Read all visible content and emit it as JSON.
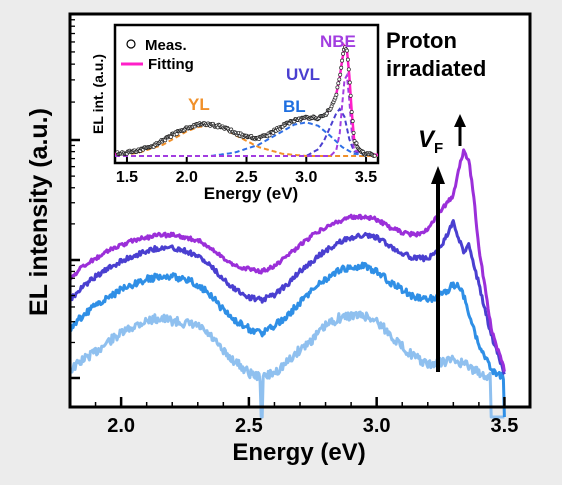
{
  "chart_data": [
    {
      "type": "line",
      "xlabel": "Energy (eV)",
      "ylabel": "EL intensity (a.u.)",
      "xlim": [
        1.8,
        3.6
      ],
      "ylim": [
        0,
        1
      ],
      "x_ticks": [
        "2.0",
        "2.5",
        "3.0",
        "3.5"
      ],
      "annotation": [
        "Proton",
        "irradiated"
      ],
      "arrow_label": {
        "main": "V",
        "sub": "F"
      },
      "series": [
        {
          "color": "#8fc0ef",
          "x": [
            1.8,
            1.85,
            1.9,
            1.95,
            2.0,
            2.05,
            2.1,
            2.15,
            2.2,
            2.25,
            2.3,
            2.35,
            2.4,
            2.45,
            2.5,
            2.55,
            2.6,
            2.65,
            2.7,
            2.75,
            2.8,
            2.85,
            2.9,
            2.95,
            3.0,
            3.05,
            3.1,
            3.15,
            3.2,
            3.25,
            3.3,
            3.35,
            3.4,
            3.45,
            3.5
          ],
          "y": [
            0.03,
            0.07,
            0.1,
            0.14,
            0.17,
            0.2,
            0.22,
            0.23,
            0.22,
            0.21,
            0.2,
            0.16,
            0.1,
            0.06,
            0.02,
            0.0,
            0.02,
            0.06,
            0.11,
            0.15,
            0.2,
            0.23,
            0.24,
            0.24,
            0.22,
            0.17,
            0.12,
            0.08,
            0.05,
            0.06,
            0.07,
            0.05,
            0.02,
            0.0,
            0.0
          ]
        },
        {
          "color": "#2f8fe6",
          "x": [
            1.8,
            1.85,
            1.9,
            1.95,
            2.0,
            2.05,
            2.1,
            2.15,
            2.2,
            2.25,
            2.3,
            2.35,
            2.4,
            2.45,
            2.5,
            2.55,
            2.6,
            2.65,
            2.7,
            2.75,
            2.8,
            2.85,
            2.9,
            2.95,
            3.0,
            3.05,
            3.1,
            3.15,
            3.2,
            3.25,
            3.28,
            3.3,
            3.33,
            3.36,
            3.4,
            3.45,
            3.5
          ],
          "y": [
            0.19,
            0.24,
            0.28,
            0.31,
            0.34,
            0.36,
            0.38,
            0.39,
            0.39,
            0.38,
            0.36,
            0.32,
            0.26,
            0.22,
            0.19,
            0.17,
            0.2,
            0.24,
            0.29,
            0.34,
            0.38,
            0.41,
            0.43,
            0.43,
            0.41,
            0.37,
            0.34,
            0.31,
            0.3,
            0.32,
            0.34,
            0.36,
            0.35,
            0.25,
            0.12,
            0.03,
            0.0
          ]
        },
        {
          "color": "#4a3fd0",
          "x": [
            1.8,
            1.85,
            1.9,
            1.95,
            2.0,
            2.05,
            2.1,
            2.15,
            2.2,
            2.25,
            2.3,
            2.35,
            2.4,
            2.45,
            2.5,
            2.55,
            2.6,
            2.65,
            2.7,
            2.75,
            2.8,
            2.85,
            2.9,
            2.95,
            3.0,
            3.05,
            3.1,
            3.15,
            3.2,
            3.25,
            3.28,
            3.3,
            3.32,
            3.34,
            3.36,
            3.4,
            3.45,
            3.5
          ],
          "y": [
            0.3,
            0.35,
            0.39,
            0.42,
            0.45,
            0.47,
            0.49,
            0.5,
            0.5,
            0.49,
            0.47,
            0.43,
            0.38,
            0.34,
            0.31,
            0.3,
            0.32,
            0.36,
            0.41,
            0.45,
            0.49,
            0.52,
            0.54,
            0.55,
            0.54,
            0.51,
            0.48,
            0.46,
            0.46,
            0.5,
            0.56,
            0.6,
            0.54,
            0.48,
            0.52,
            0.36,
            0.16,
            0.02
          ]
        },
        {
          "color": "#9b2fd9",
          "x": [
            1.8,
            1.85,
            1.9,
            1.95,
            2.0,
            2.05,
            2.1,
            2.15,
            2.2,
            2.25,
            2.3,
            2.35,
            2.4,
            2.45,
            2.5,
            2.55,
            2.6,
            2.65,
            2.7,
            2.75,
            2.8,
            2.85,
            2.9,
            2.95,
            3.0,
            3.05,
            3.1,
            3.15,
            3.2,
            3.25,
            3.28,
            3.3,
            3.32,
            3.34,
            3.36,
            3.38,
            3.4,
            3.45,
            3.5
          ],
          "y": [
            0.38,
            0.43,
            0.46,
            0.49,
            0.51,
            0.53,
            0.54,
            0.55,
            0.55,
            0.54,
            0.53,
            0.5,
            0.46,
            0.43,
            0.42,
            0.41,
            0.43,
            0.47,
            0.51,
            0.55,
            0.58,
            0.6,
            0.62,
            0.62,
            0.61,
            0.58,
            0.56,
            0.55,
            0.57,
            0.64,
            0.68,
            0.7,
            0.8,
            0.87,
            0.84,
            0.7,
            0.5,
            0.18,
            0.03
          ]
        }
      ]
    },
    {
      "type": "line",
      "xlabel": "Energy (eV)",
      "ylabel": "EL int. (a.u.)",
      "xlim": [
        1.4,
        3.6
      ],
      "ylim": [
        0,
        1
      ],
      "x_ticks": [
        "1.5",
        "2.0",
        "2.5",
        "3.0",
        "3.5"
      ],
      "legend": [
        "Meas.",
        "Fitting"
      ],
      "peak_labels": [
        {
          "text": "YL",
          "color": "#f0902a"
        },
        {
          "text": "BL",
          "color": "#1f6fe0"
        },
        {
          "text": "UVL",
          "color": "#4a3fd0"
        },
        {
          "text": "NBE",
          "color": "#a23de0"
        }
      ],
      "measured": {
        "x": [
          1.4,
          1.5,
          1.6,
          1.7,
          1.8,
          1.9,
          2.0,
          2.1,
          2.2,
          2.3,
          2.4,
          2.5,
          2.6,
          2.7,
          2.8,
          2.9,
          3.0,
          3.1,
          3.15,
          3.2,
          3.25,
          3.28,
          3.3,
          3.32,
          3.34,
          3.36,
          3.38,
          3.4,
          3.45,
          3.5,
          3.6
        ],
        "y": [
          0.02,
          0.03,
          0.05,
          0.08,
          0.14,
          0.2,
          0.25,
          0.28,
          0.28,
          0.26,
          0.21,
          0.17,
          0.16,
          0.2,
          0.27,
          0.32,
          0.34,
          0.34,
          0.36,
          0.42,
          0.55,
          0.7,
          0.85,
          0.98,
          0.95,
          0.72,
          0.4,
          0.15,
          0.04,
          0.02,
          0.01
        ]
      },
      "fitting": {
        "color": "#ff1fc8",
        "x": [
          1.4,
          1.5,
          1.6,
          1.7,
          1.8,
          1.9,
          2.0,
          2.1,
          2.2,
          2.3,
          2.4,
          2.5,
          2.6,
          2.7,
          2.8,
          2.9,
          3.0,
          3.1,
          3.15,
          3.2,
          3.25,
          3.28,
          3.3,
          3.32,
          3.34,
          3.36,
          3.38,
          3.4,
          3.45,
          3.5,
          3.6
        ],
        "y": [
          0.02,
          0.03,
          0.05,
          0.08,
          0.14,
          0.2,
          0.25,
          0.28,
          0.28,
          0.26,
          0.21,
          0.17,
          0.16,
          0.2,
          0.27,
          0.32,
          0.34,
          0.34,
          0.36,
          0.42,
          0.55,
          0.7,
          0.85,
          0.98,
          0.95,
          0.72,
          0.4,
          0.15,
          0.04,
          0.02,
          0.01
        ]
      },
      "components": [
        {
          "color": "#f0902a",
          "x": [
            1.4,
            1.6,
            1.8,
            2.0,
            2.1,
            2.2,
            2.3,
            2.4,
            2.6,
            2.8,
            3.0,
            3.2,
            3.6
          ],
          "y": [
            0.0,
            0.03,
            0.1,
            0.22,
            0.26,
            0.27,
            0.25,
            0.19,
            0.08,
            0.02,
            0.0,
            0.0,
            0.0
          ]
        },
        {
          "color": "#2f6fe6",
          "x": [
            1.4,
            2.2,
            2.4,
            2.6,
            2.8,
            2.9,
            3.0,
            3.1,
            3.2,
            3.3,
            3.4,
            3.6
          ],
          "y": [
            0.0,
            0.0,
            0.03,
            0.1,
            0.22,
            0.28,
            0.3,
            0.27,
            0.18,
            0.08,
            0.02,
            0.0
          ]
        },
        {
          "color": "#4a3fd0",
          "x": [
            1.4,
            3.0,
            3.1,
            3.15,
            3.2,
            3.25,
            3.28,
            3.32,
            3.36,
            3.4,
            3.6
          ],
          "y": [
            0.0,
            0.0,
            0.06,
            0.14,
            0.26,
            0.38,
            0.42,
            0.35,
            0.15,
            0.04,
            0.0
          ]
        },
        {
          "color": "#a23de0",
          "x": [
            1.4,
            3.2,
            3.25,
            3.28,
            3.3,
            3.32,
            3.34,
            3.36,
            3.38,
            3.4,
            3.6
          ],
          "y": [
            0.0,
            0.0,
            0.05,
            0.2,
            0.45,
            0.68,
            0.72,
            0.5,
            0.22,
            0.05,
            0.0
          ]
        }
      ]
    }
  ]
}
